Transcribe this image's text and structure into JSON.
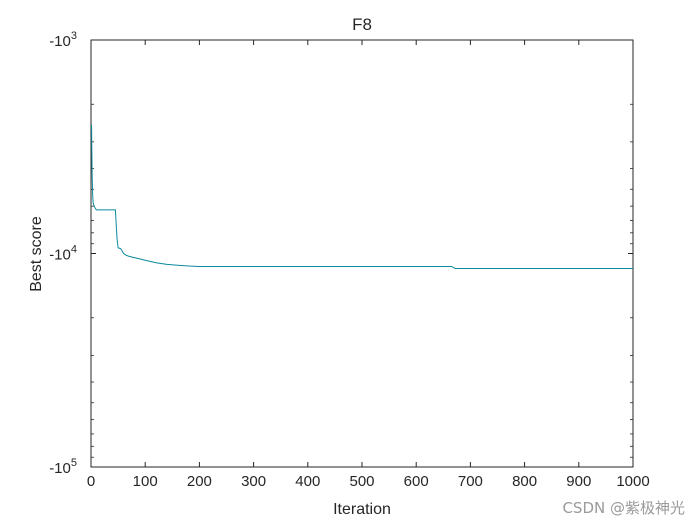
{
  "chart_data": {
    "type": "line",
    "title": "F8",
    "xlabel": "Iteration",
    "ylabel": "Best score",
    "xlim": [
      0,
      1000
    ],
    "ylim": [
      -100000,
      -1000
    ],
    "y_scale": "log (negative values)",
    "grid": false,
    "x_ticks": [
      "0",
      "100",
      "200",
      "300",
      "400",
      "500",
      "600",
      "700",
      "800",
      "900",
      "1000"
    ],
    "y_ticks": [
      {
        "value": -1000,
        "base": "-10",
        "exp": "3"
      },
      {
        "value": -10000,
        "base": "-10",
        "exp": "4"
      },
      {
        "value": -100000,
        "base": "-10",
        "exp": "5"
      }
    ],
    "series": [
      {
        "color": "#0a8a9c",
        "x": [
          1,
          2,
          3,
          4,
          6,
          8,
          10,
          45,
          48,
          50,
          55,
          60,
          65,
          70,
          80,
          90,
          100,
          110,
          120,
          140,
          160,
          180,
          200,
          300,
          400,
          500,
          600,
          665,
          672,
          700,
          800,
          900,
          1000
        ],
        "y": [
          -2500,
          -4100,
          -5300,
          -5800,
          -6000,
          -6150,
          -6250,
          -6250,
          -8500,
          -9400,
          -9500,
          -10000,
          -10200,
          -10300,
          -10450,
          -10600,
          -10750,
          -10900,
          -11050,
          -11250,
          -11350,
          -11450,
          -11500,
          -11500,
          -11500,
          -11500,
          -11500,
          -11500,
          -11750,
          -11750,
          -11750,
          -11750,
          -11750
        ]
      }
    ]
  },
  "watermark": "CSDN @紫极神光"
}
